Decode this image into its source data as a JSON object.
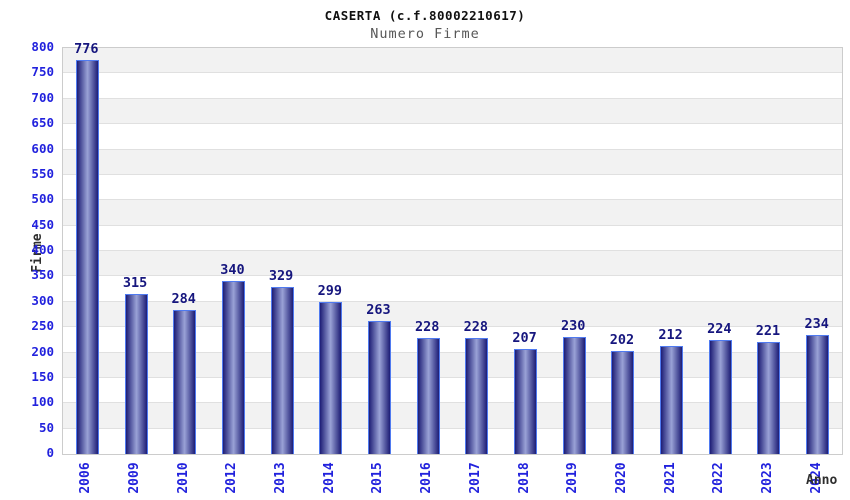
{
  "header": {
    "title": "CASERTA (c.f.80002210617)",
    "subtitle": "Numero Firme"
  },
  "chart_data": {
    "type": "bar",
    "title": "CASERTA (c.f.80002210617)",
    "subtitle": "Numero Firme",
    "xlabel": "Anno",
    "ylabel": "Firme",
    "categories": [
      "2006",
      "2009",
      "2010",
      "2012",
      "2013",
      "2014",
      "2015",
      "2016",
      "2017",
      "2018",
      "2019",
      "2020",
      "2021",
      "2022",
      "2023",
      "2024"
    ],
    "values": [
      776,
      315,
      284,
      340,
      329,
      299,
      263,
      228,
      228,
      207,
      230,
      202,
      212,
      224,
      221,
      234
    ],
    "ylim": [
      0,
      800
    ],
    "ytick_step": 50,
    "grid": true,
    "legend_position": "none",
    "colors": {
      "tick_label_blue": "#2222dd",
      "value_label_navy": "#16167e",
      "axis_label_dark": "#2e2e2e",
      "title_color": "#111111",
      "subtitle_gray": "#575757",
      "band_gray": "#f2f2f2",
      "gridline": "#e0e0e0",
      "plot_border": "#cccccc",
      "bar_border": "#4f7af0",
      "bar_edge": "#1d1d75",
      "bar_center": "#9aa2d6"
    }
  }
}
